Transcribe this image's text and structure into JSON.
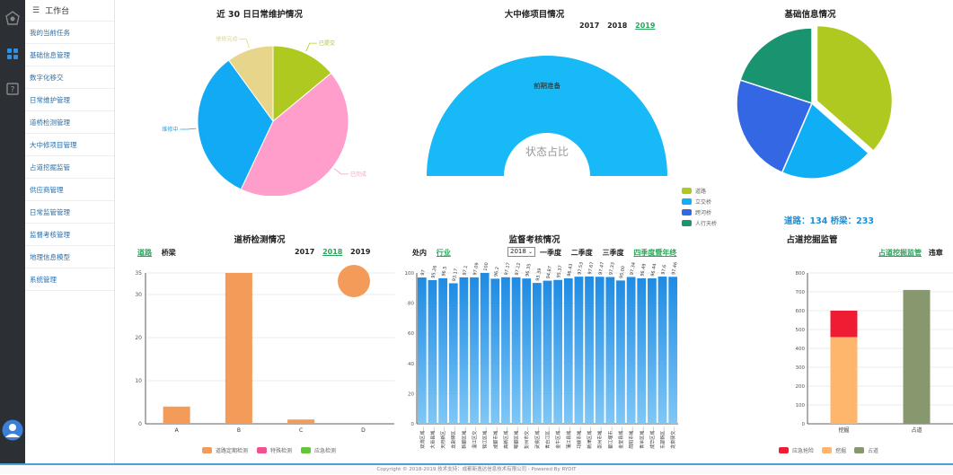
{
  "sidebar": {
    "header_label": "工作台",
    "items": [
      {
        "label": "我的当前任务"
      },
      {
        "label": "基础信息管理"
      },
      {
        "label": "数字化移交"
      },
      {
        "label": "日常维护管理"
      },
      {
        "label": "道桥检测管理"
      },
      {
        "label": "大中修项目管理"
      },
      {
        "label": "占道挖掘监管"
      },
      {
        "label": "供应商管理"
      },
      {
        "label": "日常监管管理"
      },
      {
        "label": "监督考核管理"
      },
      {
        "label": "地理信息模型"
      },
      {
        "label": "系统管理"
      }
    ]
  },
  "charts": {
    "maint": {
      "title": "近 30 日日常维护情况"
    },
    "projects": {
      "title": "大中修项目情况",
      "years": [
        "2017",
        "2018",
        "2019"
      ],
      "selected_year": "2019",
      "segment_label": "前期准备",
      "center_label": "状态占比"
    },
    "basic": {
      "title": "基础信息情况",
      "summary": "道路：134 桥梁：233",
      "legend": [
        "道路",
        "立交桥",
        "跨河桥",
        "人行天桥"
      ]
    },
    "inspect": {
      "title": "道桥检测情况",
      "tabs": [
        "道路",
        "桥梁"
      ],
      "selected_tab": "道路",
      "years": [
        "2017",
        "2018",
        "2019"
      ],
      "selected_year": "2018",
      "legend": [
        "道路定期检测",
        "特殊检测",
        "应急检测"
      ]
    },
    "supervise": {
      "title": "监督考核情况",
      "tabs": [
        "处内",
        "行业"
      ],
      "selected_tab": "行业",
      "year_select": "2018",
      "quarters": [
        "一季度",
        "二季度",
        "三季度",
        "四季度暨年终"
      ],
      "selected_quarter": "四季度暨年终"
    },
    "dig": {
      "title": "占道挖掘监管",
      "tabs": [
        "占道挖掘监管",
        "违章"
      ],
      "selected_tab": "占道挖掘监管",
      "legend": [
        "应急抢险",
        "挖掘",
        "占道"
      ]
    }
  },
  "chart_data": [
    {
      "type": "pie",
      "title": "近 30 日日常维护情况",
      "labels": [
        "已提交",
        "已完成",
        "维修中",
        "维修完成"
      ],
      "values": [
        14,
        43,
        33,
        10
      ],
      "colors": [
        "#b0c920",
        "#ff9dcb",
        "#12a9f5",
        "#e6d58a"
      ]
    },
    {
      "type": "pie",
      "title": "大中修项目情况",
      "labels": [
        "前期准备"
      ],
      "values": [
        1
      ],
      "colors": [
        "#17b9f6"
      ]
    },
    {
      "type": "pie",
      "title": "基础信息情况",
      "labels": [
        "道路",
        "立交桥",
        "跨河桥",
        "人行天桥"
      ],
      "values": [
        36.5,
        20,
        23.5,
        20
      ],
      "colors": [
        "#b0c920",
        "#10aef4",
        "#3467e4",
        "#1a9470"
      ]
    },
    {
      "type": "bar",
      "title": "道桥检测情况",
      "categories": [
        "A",
        "B",
        "C",
        "D"
      ],
      "series": [
        {
          "name": "道路定期检测",
          "values": [
            4,
            35,
            1,
            0
          ]
        }
      ],
      "ylim": [
        0,
        35
      ],
      "yticks": [
        0,
        10,
        20,
        30,
        35
      ],
      "legend": [
        "道路定期检测",
        "特殊检测",
        "应急检测"
      ]
    },
    {
      "type": "bar",
      "title": "监督考核情况",
      "categories": [
        "双流区城...",
        "大邑县城...",
        "天府新区...",
        "龙泉驿区...",
        "新都区城...",
        "温江区交...",
        "锦江区城...",
        "成都市城...",
        "高新区城...",
        "郫都区城...",
        "彭州市交...",
        "武侯区城...",
        "青白江区...",
        "金牛区城...",
        "蒲江县城...",
        "邛崃市城...",
        "新津区城...",
        "崇州市城...",
        "都江堰市...",
        "金堂县城...",
        "简阳市城...",
        "青羊区城...",
        "成华区城...",
        "东部新区...",
        "龙泉驿交..."
      ],
      "values": [
        97,
        95.26,
        96.5,
        93.17,
        97.1,
        97.09,
        100,
        96.2,
        97.17,
        97.12,
        96.35,
        93.39,
        94.87,
        95.37,
        96.43,
        97.53,
        97.67,
        97.47,
        97.33,
        95.0,
        97.34,
        96.49,
        96.44,
        97.6,
        97.46
      ],
      "value_labels": [
        "97",
        "95.26",
        "96.5",
        "93.17",
        "97.1",
        "97.09",
        "100",
        "96.2",
        "97.17",
        "97.12",
        "96.35",
        "93.39",
        "94.87",
        "95.37",
        "96.43",
        "97.53",
        "97.67",
        "97.47",
        "97.33",
        "95.00",
        "97.34",
        "96.49",
        "96.44",
        "97.6",
        "97.46"
      ],
      "ylim": [
        0,
        100
      ],
      "yticks": [
        0,
        20,
        40,
        60,
        80,
        100
      ]
    },
    {
      "type": "bar",
      "title": "占道挖掘监管",
      "categories": [
        "挖掘",
        "占道"
      ],
      "series": [
        {
          "name": "挖掘",
          "values": [
            460,
            0
          ]
        },
        {
          "name": "应急抢险",
          "values": [
            140,
            0
          ]
        },
        {
          "name": "占道",
          "values": [
            0,
            710
          ]
        }
      ],
      "ylim": [
        0,
        800
      ],
      "yticks": [
        0,
        100,
        200,
        300,
        400,
        500,
        600,
        700,
        800
      ]
    }
  ]
}
